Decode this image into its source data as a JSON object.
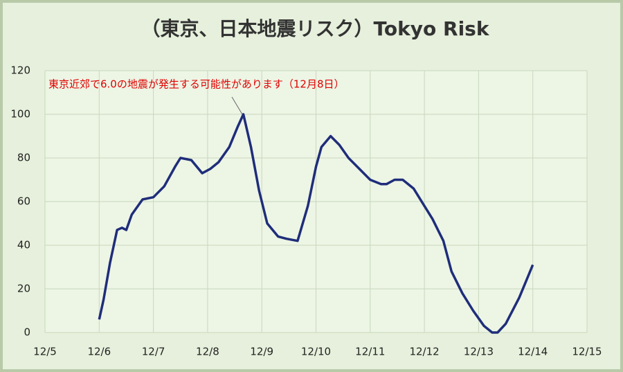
{
  "chart_data": {
    "type": "line",
    "title": "（東京、日本地震リスク）Tokyo Risk",
    "annotation": "東京近郊で6.0の地震が発生する可能性があります（12月8日）",
    "x": [
      6.0,
      6.08,
      6.2,
      6.33,
      6.42,
      6.5,
      6.6,
      6.8,
      7.0,
      7.2,
      7.4,
      7.5,
      7.7,
      7.9,
      8.05,
      8.2,
      8.4,
      8.55,
      8.66,
      8.8,
      8.95,
      9.1,
      9.3,
      9.45,
      9.66,
      9.85,
      10.0,
      10.1,
      10.27,
      10.43,
      10.6,
      10.8,
      11.0,
      11.2,
      11.3,
      11.45,
      11.6,
      11.8,
      12.0,
      12.15,
      12.35,
      12.5,
      12.7,
      12.9,
      13.1,
      13.25,
      13.35,
      13.5,
      13.75,
      14.0
    ],
    "series": [
      {
        "color": "#1f2d7a",
        "values": [
          6,
          15,
          32,
          47,
          48,
          47,
          54,
          61,
          62,
          67,
          76,
          80,
          79,
          73,
          75,
          78,
          85,
          94,
          100,
          85,
          65,
          50,
          44,
          43,
          42,
          58,
          76,
          85,
          90,
          86,
          80,
          75,
          70,
          68,
          68,
          70,
          70,
          66,
          58,
          52,
          42,
          28,
          18,
          10,
          3,
          0,
          0,
          4,
          16,
          31
        ]
      }
    ],
    "xlim": [
      5,
      15
    ],
    "xticks": [
      {
        "value": 5,
        "label": "12/5"
      },
      {
        "value": 6,
        "label": "12/6"
      },
      {
        "value": 7,
        "label": "12/7"
      },
      {
        "value": 8,
        "label": "12/8"
      },
      {
        "value": 9,
        "label": "12/9"
      },
      {
        "value": 10,
        "label": "12/10"
      },
      {
        "value": 11,
        "label": "12/11"
      },
      {
        "value": 12,
        "label": "12/12"
      },
      {
        "value": 13,
        "label": "12/13"
      },
      {
        "value": 14,
        "label": "12/14"
      },
      {
        "value": 15,
        "label": "12/15"
      }
    ],
    "ylim": [
      0,
      120
    ],
    "yticks": [
      0,
      20,
      40,
      60,
      80,
      100,
      120
    ],
    "grid": true
  }
}
